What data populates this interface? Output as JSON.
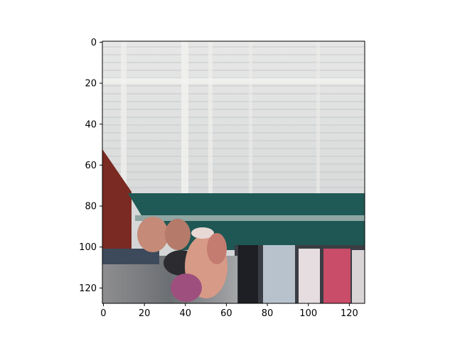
{
  "figure": {
    "background": "#ffffff",
    "image_description_colors": {
      "sky_window": "#d9dadb",
      "stripe_light": "#eeeeec",
      "awning_teal": "#1f5a56",
      "wall_red": "#7a2a22",
      "shop_pink": "#c94c68",
      "people_skin": "#d79a86"
    }
  },
  "axes": {
    "x_ticks": [
      "0",
      "20",
      "40",
      "60",
      "80",
      "100",
      "120"
    ],
    "x_tick_values": [
      0,
      20,
      40,
      60,
      80,
      100,
      120
    ],
    "y_ticks": [
      "0",
      "20",
      "40",
      "60",
      "80",
      "100",
      "120"
    ],
    "y_tick_values": [
      0,
      20,
      40,
      60,
      80,
      100,
      120
    ],
    "xlim": [
      -0.5,
      127.5
    ],
    "ylim": [
      127.5,
      -0.5
    ]
  }
}
